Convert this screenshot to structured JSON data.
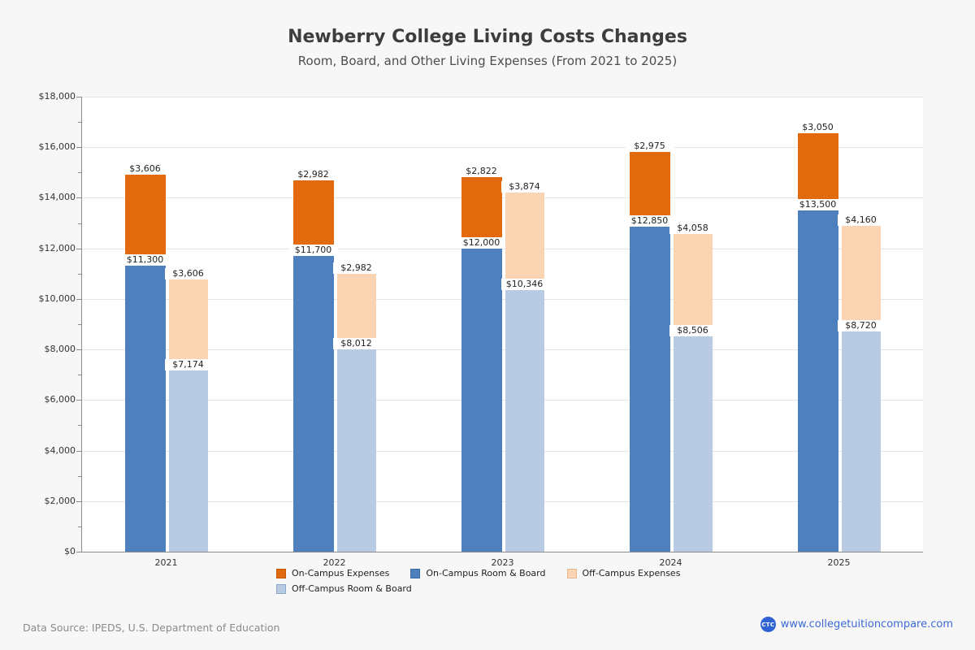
{
  "chart_data": {
    "type": "bar",
    "stacked": true,
    "title": "Newberry College Living Costs Changes",
    "subtitle": "Room, Board, and Other Living Expenses (From 2021 to 2025)",
    "categories": [
      "2021",
      "2022",
      "2023",
      "2024",
      "2025"
    ],
    "series": [
      {
        "name": "On-Campus Room & Board",
        "stack": "on-campus",
        "color": "#4d80bd",
        "values": [
          11300,
          11700,
          12000,
          12850,
          13500
        ]
      },
      {
        "name": "On-Campus Expenses",
        "stack": "on-campus",
        "color": "#e2690c",
        "values": [
          3606,
          2982,
          2822,
          2975,
          3050
        ]
      },
      {
        "name": "Off-Campus Room & Board",
        "stack": "off-campus",
        "color": "#b8cbe3",
        "values": [
          7174,
          8012,
          10346,
          8506,
          8720
        ]
      },
      {
        "name": "Off-Campus Expenses",
        "stack": "off-campus",
        "color": "#fbd5b3",
        "values": [
          3606,
          2982,
          3874,
          4058,
          4160
        ]
      }
    ],
    "ylim": [
      0,
      18000
    ],
    "y_major_step": 2000,
    "y_minor_step": 1000,
    "value_prefix": "$",
    "grid": "horizontal-major",
    "legend_position": "bottom"
  },
  "legend": {
    "items": [
      {
        "label": "On-Campus Expenses",
        "color": "#e2690c",
        "border": "#c2570a"
      },
      {
        "label": "On-Campus Room & Board",
        "color": "#4d80bd",
        "border": "#3d6da6"
      },
      {
        "label": "Off-Campus Expenses",
        "color": "#fbd5b3",
        "border": "#e8b88d"
      },
      {
        "label": "Off-Campus Room & Board",
        "color": "#b8cbe3",
        "border": "#8aa7cc"
      }
    ]
  },
  "footer": {
    "data_source": "Data Source: IPEDS, U.S. Department of Education",
    "logo_text": "CTC",
    "site_url": "www.collegetuitioncompare.com"
  }
}
